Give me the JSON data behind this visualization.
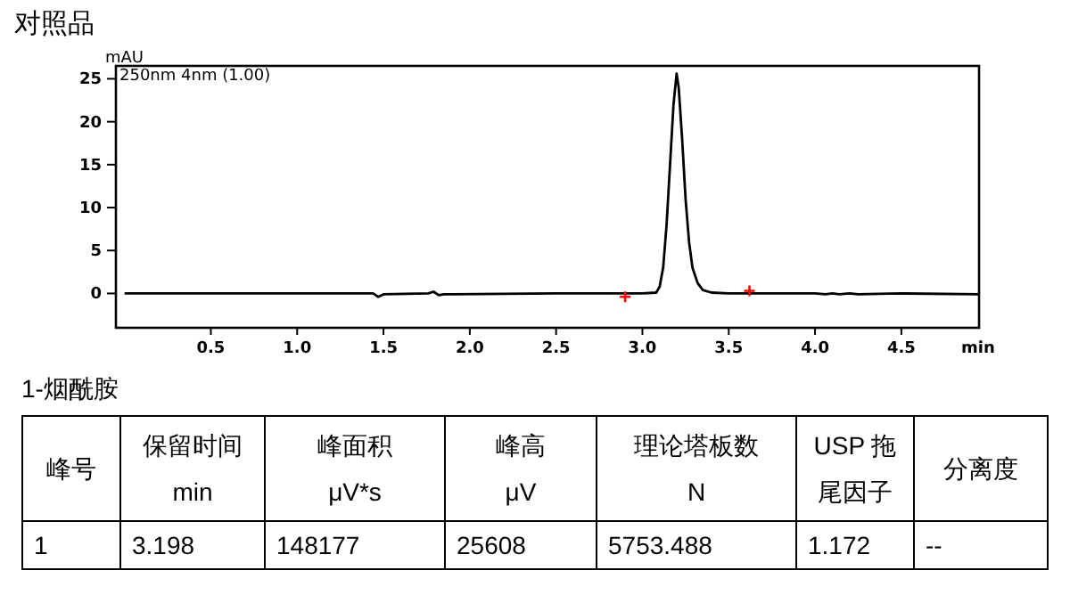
{
  "chart_data": {
    "type": "line",
    "title": "对照品",
    "xlabel": "min",
    "ylabel": "mAU",
    "xlim": [
      -0.05,
      4.95
    ],
    "ylim": [
      -4,
      26.5
    ],
    "xticks": [
      {
        "value": 0.5,
        "label": "0.5"
      },
      {
        "value": 1,
        "label": "1.0"
      },
      {
        "value": 1.5,
        "label": "1.5"
      },
      {
        "value": 2,
        "label": "2.0"
      },
      {
        "value": 2.5,
        "label": "2.5"
      },
      {
        "value": 3,
        "label": "3.0"
      },
      {
        "value": 3.5,
        "label": "3.5"
      },
      {
        "value": 4,
        "label": "4.0"
      },
      {
        "value": 4.5,
        "label": "4.5"
      }
    ],
    "yticks": [
      0,
      5,
      10,
      15,
      20,
      25
    ],
    "grid": false,
    "series": [
      {
        "color": "#000000",
        "marker": "none",
        "x": [
          0,
          1.0,
          1.44,
          1.47,
          1.5,
          1.76,
          1.79,
          1.82,
          1.85,
          2.5,
          2.9,
          3.0,
          3.08,
          3.1,
          3.12,
          3.14,
          3.16,
          3.18,
          3.198,
          3.21,
          3.23,
          3.25,
          3.27,
          3.29,
          3.32,
          3.35,
          3.4,
          3.5,
          4.0,
          4.06,
          4.1,
          4.14,
          4.2,
          4.25,
          4.5,
          4.95
        ],
        "values": [
          0,
          0,
          0,
          -0.4,
          -0.1,
          0,
          0.2,
          -0.2,
          -0.1,
          0,
          0,
          0,
          0.1,
          0.8,
          3,
          8,
          15,
          22,
          25.6,
          24,
          18,
          11,
          6,
          3,
          1.2,
          0.4,
          0.1,
          0,
          0,
          -0.1,
          0,
          -0.1,
          0,
          -0.1,
          0,
          -0.1
        ]
      },
      {
        "type": "scatter",
        "color": "#ff0000",
        "marker": "cross",
        "x": [
          2.9,
          3.62
        ],
        "values": [
          -0.4,
          0.3
        ]
      }
    ],
    "annotations": [
      "250nm 4nm (1.00)",
      "1-烟酰胺",
      "峰号",
      "保留时间\nmin",
      "峰面积\nμV*s",
      "峰高\nμV",
      "理论塔板数\nN",
      "USP 拖尾因子",
      "分离度",
      "1",
      "3.198",
      "148177",
      "25608",
      "5753.488",
      "1.172",
      "--"
    ]
  }
}
